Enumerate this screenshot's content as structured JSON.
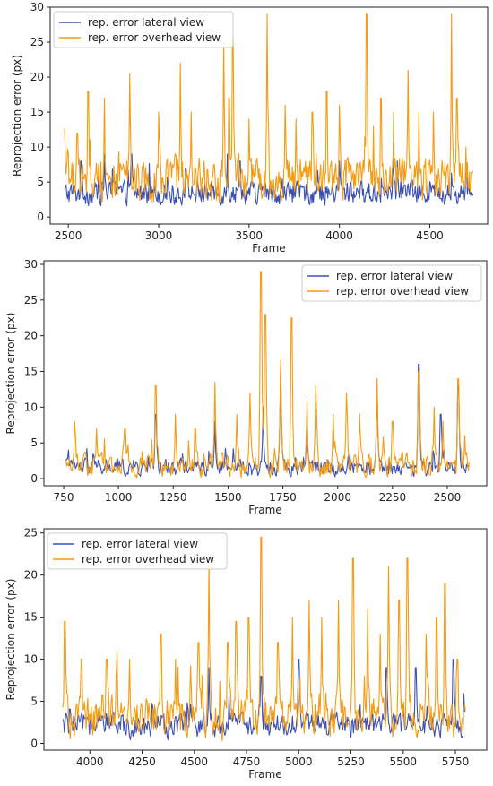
{
  "chart_data": [
    {
      "type": "line",
      "xlabel": "Frame",
      "ylabel": "Reprojection error (px)",
      "xlim": [
        2400,
        4820
      ],
      "ylim": [
        -1,
        30
      ],
      "xticks": [
        2500,
        3000,
        3500,
        4000,
        4500
      ],
      "yticks": [
        0,
        5,
        10,
        15,
        20,
        25,
        30
      ],
      "legend_position": "top-left",
      "grid": false,
      "series": [
        {
          "name": "rep. error lateral view",
          "color": "#3b50b4",
          "x_start": 2480,
          "x_end": 4740,
          "baseline": 3.2,
          "noise": 2.2,
          "peaks": [
            [
              2570,
              8
            ],
            [
              2700,
              9
            ],
            [
              2850,
              9
            ],
            [
              3150,
              7
            ],
            [
              3380,
              9
            ],
            [
              3450,
              8
            ],
            [
              4000,
              8
            ],
            [
              4320,
              8
            ],
            [
              4700,
              8
            ]
          ]
        },
        {
          "name": "rep. error overhead view",
          "color": "#f39c12",
          "x_start": 2480,
          "x_end": 4740,
          "baseline": 5.0,
          "noise": 4.0,
          "peaks": [
            [
              2550,
              12
            ],
            [
              2610,
              18
            ],
            [
              2700,
              17
            ],
            [
              2840,
              20.5
            ],
            [
              3000,
              15
            ],
            [
              3120,
              22
            ],
            [
              3180,
              15
            ],
            [
              3360,
              25
            ],
            [
              3390,
              17
            ],
            [
              3410,
              25.5
            ],
            [
              3500,
              14
            ],
            [
              3600,
              29
            ],
            [
              3700,
              16
            ],
            [
              3760,
              14
            ],
            [
              3850,
              15
            ],
            [
              3930,
              18
            ],
            [
              4000,
              16
            ],
            [
              4150,
              29
            ],
            [
              4230,
              17
            ],
            [
              4300,
              15
            ],
            [
              4380,
              21
            ],
            [
              4440,
              15
            ],
            [
              4520,
              15
            ],
            [
              4620,
              29
            ],
            [
              4650,
              17
            ],
            [
              4700,
              10
            ]
          ]
        }
      ]
    },
    {
      "type": "line",
      "xlabel": "Frame",
      "ylabel": "Reprojection error (px)",
      "xlim": [
        660,
        2680
      ],
      "ylim": [
        -1,
        30.5
      ],
      "xticks": [
        750,
        1000,
        1250,
        1500,
        1750,
        2000,
        2250,
        2500
      ],
      "yticks": [
        0,
        5,
        10,
        15,
        20,
        25,
        30
      ],
      "legend_position": "top-right",
      "grid": false,
      "series": [
        {
          "name": "rep. error lateral view",
          "color": "#3b50b4",
          "x_start": 760,
          "x_end": 2600,
          "baseline": 1.4,
          "noise": 1.6,
          "peaks": [
            [
              1170,
              9
            ],
            [
              1440,
              8
            ],
            [
              1660,
              10
            ],
            [
              1740,
              16
            ],
            [
              1860,
              9
            ],
            [
              2180,
              13
            ],
            [
              2370,
              16
            ],
            [
              2470,
              9
            ],
            [
              2550,
              13
            ]
          ]
        },
        {
          "name": "rep. error overhead view",
          "color": "#f39c12",
          "x_start": 760,
          "x_end": 2600,
          "baseline": 1.6,
          "noise": 2.2,
          "peaks": [
            [
              800,
              8
            ],
            [
              900,
              7
            ],
            [
              1030,
              7
            ],
            [
              1170,
              13
            ],
            [
              1260,
              9
            ],
            [
              1350,
              7
            ],
            [
              1440,
              13.5
            ],
            [
              1540,
              9
            ],
            [
              1600,
              12
            ],
            [
              1650,
              29
            ],
            [
              1670,
              23
            ],
            [
              1740,
              16.5
            ],
            [
              1790,
              22.5
            ],
            [
              1860,
              11
            ],
            [
              1900,
              13
            ],
            [
              1980,
              9
            ],
            [
              2040,
              12
            ],
            [
              2100,
              9
            ],
            [
              2180,
              14
            ],
            [
              2250,
              8
            ],
            [
              2370,
              15
            ],
            [
              2440,
              10
            ],
            [
              2480,
              8
            ],
            [
              2550,
              14
            ],
            [
              2580,
              6
            ]
          ]
        }
      ]
    },
    {
      "type": "line",
      "xlabel": "Frame",
      "ylabel": "Reprojection error (px)",
      "xlim": [
        3780,
        5900
      ],
      "ylim": [
        -0.8,
        25.5
      ],
      "xticks": [
        4000,
        4250,
        4500,
        4750,
        5000,
        5250,
        5500,
        5750
      ],
      "yticks": [
        0,
        5,
        10,
        15,
        20,
        25
      ],
      "legend_position": "top-left",
      "grid": false,
      "series": [
        {
          "name": "rep. error lateral view",
          "color": "#3b50b4",
          "x_start": 3870,
          "x_end": 5800,
          "baseline": 2.0,
          "noise": 2.0,
          "peaks": [
            [
              4570,
              9
            ],
            [
              4820,
              8
            ],
            [
              5000,
              10
            ],
            [
              5420,
              9
            ],
            [
              5560,
              9
            ],
            [
              5740,
              10
            ]
          ]
        },
        {
          "name": "rep. error overhead view",
          "color": "#f39c12",
          "x_start": 3870,
          "x_end": 5800,
          "baseline": 2.8,
          "noise": 3.2,
          "peaks": [
            [
              3880,
              14.5
            ],
            [
              3960,
              10
            ],
            [
              4080,
              10
            ],
            [
              4190,
              10
            ],
            [
              4340,
              13
            ],
            [
              4410,
              10
            ],
            [
              4520,
              12
            ],
            [
              4570,
              22
            ],
            [
              4660,
              12
            ],
            [
              4700,
              14.5
            ],
            [
              4760,
              15
            ],
            [
              4820,
              24.5
            ],
            [
              4900,
              12
            ],
            [
              4970,
              15
            ],
            [
              5050,
              17
            ],
            [
              5110,
              15
            ],
            [
              5190,
              17
            ],
            [
              5260,
              22
            ],
            [
              5330,
              16
            ],
            [
              5390,
              13
            ],
            [
              5430,
              21
            ],
            [
              5480,
              17
            ],
            [
              5520,
              22
            ],
            [
              5610,
              13
            ],
            [
              5660,
              15
            ],
            [
              5700,
              19
            ],
            [
              5760,
              10
            ]
          ]
        }
      ]
    }
  ]
}
